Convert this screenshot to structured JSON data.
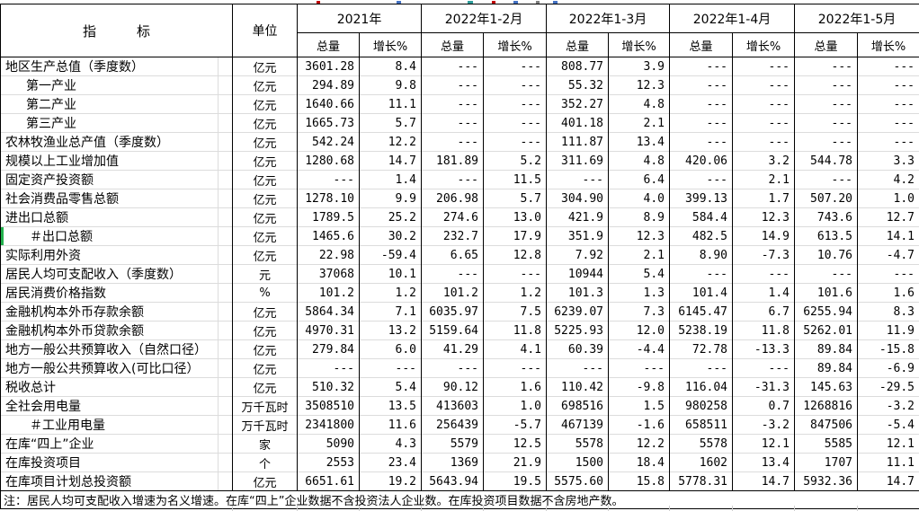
{
  "table": {
    "indicator_header": "指　　　标",
    "unit_header": "单位",
    "period_headers": [
      "2021年",
      "2022年1-2月",
      "2022年1-3月",
      "2022年1-4月",
      "2022年1-5月"
    ],
    "subheaders": {
      "total": "总量",
      "growth": "增长%"
    },
    "rows": [
      {
        "indicator": "地区生产总值（季度数）",
        "unit": "亿元",
        "indent": 0,
        "highlight": false,
        "values": [
          "3601.28",
          "8.4",
          "---",
          "---",
          "808.77",
          "3.9",
          "---",
          "---",
          "---",
          "---"
        ]
      },
      {
        "indicator": "第一产业",
        "unit": "亿元",
        "indent": 1,
        "highlight": false,
        "values": [
          "294.89",
          "9.8",
          "---",
          "---",
          "55.32",
          "12.3",
          "---",
          "---",
          "---",
          "---"
        ]
      },
      {
        "indicator": "第二产业",
        "unit": "亿元",
        "indent": 1,
        "highlight": false,
        "values": [
          "1640.66",
          "11.1",
          "---",
          "---",
          "352.27",
          "4.8",
          "---",
          "---",
          "---",
          "---"
        ]
      },
      {
        "indicator": "第三产业",
        "unit": "亿元",
        "indent": 1,
        "highlight": false,
        "values": [
          "1665.73",
          "5.7",
          "---",
          "---",
          "401.18",
          "2.1",
          "---",
          "---",
          "---",
          "---"
        ]
      },
      {
        "indicator": "农林牧渔业总产值（季度数）",
        "unit": "亿元",
        "indent": 0,
        "highlight": false,
        "values": [
          "542.24",
          "12.2",
          "---",
          "---",
          "111.87",
          "13.4",
          "---",
          "---",
          "---",
          "---"
        ]
      },
      {
        "indicator": "规模以上工业增加值",
        "unit": "亿元",
        "indent": 0,
        "highlight": false,
        "values": [
          "1280.68",
          "14.7",
          "181.89",
          "5.2",
          "311.69",
          "4.8",
          "420.06",
          "3.2",
          "544.78",
          "3.3"
        ]
      },
      {
        "indicator": "固定资产投资额",
        "unit": "亿元",
        "indent": 0,
        "highlight": false,
        "values": [
          "---",
          "1.4",
          "---",
          "11.5",
          "---",
          "6.4",
          "---",
          "2.1",
          "---",
          "4.2"
        ]
      },
      {
        "indicator": "社会消费品零售总额",
        "unit": "亿元",
        "indent": 0,
        "highlight": false,
        "values": [
          "1278.10",
          "9.9",
          "206.98",
          "5.7",
          "304.90",
          "4.0",
          "399.13",
          "1.7",
          "507.20",
          "1.0"
        ]
      },
      {
        "indicator": "进出口总额",
        "unit": "亿元",
        "indent": 0,
        "highlight": false,
        "values": [
          "1789.5",
          "25.2",
          "274.6",
          "13.0",
          "421.9",
          "8.9",
          "584.4",
          "12.3",
          "743.6",
          "12.7"
        ]
      },
      {
        "indicator": "＃出口总额",
        "unit": "亿元",
        "indent": 2,
        "highlight": true,
        "values": [
          "1465.6",
          "30.2",
          "232.7",
          "17.9",
          "351.9",
          "12.3",
          "482.5",
          "14.9",
          "613.5",
          "14.1"
        ]
      },
      {
        "indicator": "实际利用外资",
        "unit": "亿元",
        "indent": 0,
        "highlight": false,
        "values": [
          "22.98",
          "-59.4",
          "6.65",
          "12.8",
          "7.92",
          "2.1",
          "8.90",
          "-7.3",
          "10.76",
          "-4.7"
        ]
      },
      {
        "indicator": "居民人均可支配收入（季度数）",
        "unit": "元",
        "indent": 0,
        "highlight": false,
        "values": [
          "37068",
          "10.1",
          "---",
          "---",
          "10944",
          "5.4",
          "---",
          "---",
          "---",
          "---"
        ]
      },
      {
        "indicator": "居民消费价格指数",
        "unit": "%",
        "indent": 0,
        "highlight": false,
        "values": [
          "101.2",
          "1.2",
          "101.2",
          "1.2",
          "101.3",
          "1.3",
          "101.4",
          "1.4",
          "101.6",
          "1.6"
        ]
      },
      {
        "indicator": "金融机构本外币存款余额",
        "unit": "亿元",
        "indent": 0,
        "highlight": false,
        "values": [
          "5864.34",
          "7.1",
          "6035.97",
          "7.5",
          "6239.07",
          "7.3",
          "6145.47",
          "6.7",
          "6255.94",
          "8.3"
        ]
      },
      {
        "indicator": "金融机构本外币贷款余额",
        "unit": "亿元",
        "indent": 0,
        "highlight": false,
        "values": [
          "4970.31",
          "13.2",
          "5159.64",
          "11.8",
          "5225.93",
          "12.0",
          "5238.19",
          "11.8",
          "5262.01",
          "11.9"
        ]
      },
      {
        "indicator": "地方一般公共预算收入（自然口径）",
        "unit": "亿元",
        "indent": 0,
        "highlight": false,
        "values": [
          "279.84",
          "6.0",
          "41.29",
          "4.1",
          "60.39",
          "-4.4",
          "72.78",
          "-13.3",
          "89.84",
          "-15.8"
        ]
      },
      {
        "indicator": "地方一般公共预算收入(可比口径）",
        "unit": "亿元",
        "indent": 0,
        "highlight": false,
        "values": [
          "---",
          "---",
          "---",
          "---",
          "---",
          "---",
          "---",
          "---",
          "89.84",
          "-6.9"
        ]
      },
      {
        "indicator": "税收总计",
        "unit": "亿元",
        "indent": 0,
        "highlight": false,
        "values": [
          "510.32",
          "5.4",
          "90.12",
          "1.6",
          "110.42",
          "-9.8",
          "116.04",
          "-31.3",
          "145.63",
          "-29.5"
        ]
      },
      {
        "indicator": "全社会用电量",
        "unit": "万千瓦时",
        "indent": 0,
        "highlight": false,
        "values": [
          "3508510",
          "13.5",
          "413603",
          "1.0",
          "698516",
          "1.5",
          "980258",
          "0.7",
          "1268816",
          "-3.2"
        ]
      },
      {
        "indicator": "＃工业用电量",
        "unit": "万千瓦时",
        "indent": 2,
        "highlight": false,
        "values": [
          "2341800",
          "11.6",
          "256439",
          "-5.7",
          "467139",
          "-1.6",
          "658511",
          "-3.2",
          "847506",
          "-5.4"
        ]
      },
      {
        "indicator": "在库“四上”企业",
        "unit": "家",
        "indent": 0,
        "highlight": false,
        "values": [
          "5090",
          "4.3",
          "5579",
          "12.5",
          "5578",
          "12.2",
          "5578",
          "12.1",
          "5585",
          "12.1"
        ]
      },
      {
        "indicator": "在库投资项目",
        "unit": "个",
        "indent": 0,
        "highlight": false,
        "values": [
          "2553",
          "23.4",
          "1369",
          "21.9",
          "1500",
          "18.4",
          "1602",
          "13.4",
          "1707",
          "11.1"
        ]
      },
      {
        "indicator": "在库项目计划总投资额",
        "unit": "亿元",
        "indent": 0,
        "highlight": false,
        "values": [
          "6651.61",
          "19.2",
          "5643.94",
          "19.5",
          "5575.60",
          "15.8",
          "5778.31",
          "14.7",
          "5932.36",
          "14.7"
        ]
      }
    ],
    "note": "注：居民人均可支配收入增速为名义增速。在库“四上”企业数据不含投资法人企业数。在库投资项目数据不含房地产数。"
  },
  "colors": {
    "row_highlight_green": "#23b14d",
    "grid_line_grey": "#dcdcdc",
    "border_black": "#000000"
  }
}
